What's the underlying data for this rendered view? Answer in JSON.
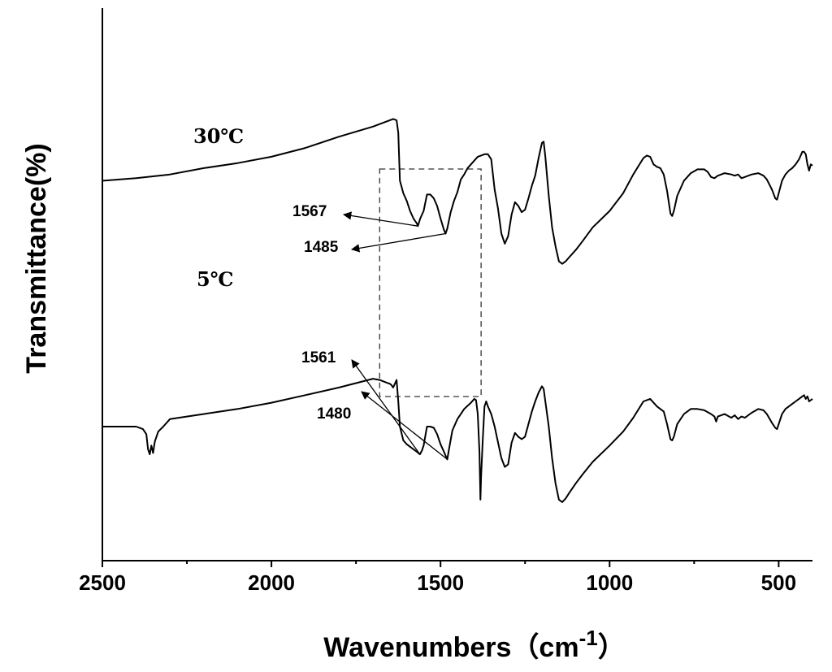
{
  "chart_data": {
    "type": "line",
    "title": "",
    "xlabel": "Wavenumbers（cm",
    "xlabel_sup": "-1",
    "xlabel_close": "）",
    "ylabel": "Transmittance(%)",
    "xlim": [
      2500,
      400
    ],
    "x_reversed": true,
    "x_ticks": [
      2500,
      2000,
      1500,
      1000,
      500
    ],
    "x_tick_labels": [
      "2500",
      "2000",
      "1500",
      "1000",
      "500"
    ],
    "y_ticks_shown": false,
    "grid": false,
    "legend": "none",
    "series": [
      {
        "name": "30℃",
        "points": [
          [
            2500,
            -8
          ],
          [
            2400,
            -6
          ],
          [
            2300,
            -3
          ],
          [
            2200,
            2
          ],
          [
            2100,
            6
          ],
          [
            2000,
            11
          ],
          [
            1900,
            18
          ],
          [
            1800,
            27
          ],
          [
            1700,
            35
          ],
          [
            1660,
            39
          ],
          [
            1640,
            41
          ],
          [
            1630,
            40
          ],
          [
            1625,
            30
          ],
          [
            1620,
            -8
          ],
          [
            1610,
            -18
          ],
          [
            1600,
            -24
          ],
          [
            1590,
            -32
          ],
          [
            1580,
            -38
          ],
          [
            1570,
            -42
          ],
          [
            1567,
            -44
          ],
          [
            1560,
            -38
          ],
          [
            1550,
            -32
          ],
          [
            1540,
            -19
          ],
          [
            1530,
            -19
          ],
          [
            1520,
            -22
          ],
          [
            1510,
            -28
          ],
          [
            1500,
            -38
          ],
          [
            1490,
            -47
          ],
          [
            1485,
            -50
          ],
          [
            1480,
            -46
          ],
          [
            1470,
            -33
          ],
          [
            1460,
            -24
          ],
          [
            1450,
            -17
          ],
          [
            1440,
            -7
          ],
          [
            1430,
            -3
          ],
          [
            1420,
            2
          ],
          [
            1410,
            5
          ],
          [
            1400,
            8
          ],
          [
            1390,
            11
          ],
          [
            1380,
            12
          ],
          [
            1370,
            13
          ],
          [
            1360,
            13
          ],
          [
            1350,
            9
          ],
          [
            1340,
            -15
          ],
          [
            1330,
            -30
          ],
          [
            1320,
            -50
          ],
          [
            1310,
            -58
          ],
          [
            1300,
            -52
          ],
          [
            1290,
            -35
          ],
          [
            1280,
            -25
          ],
          [
            1270,
            -28
          ],
          [
            1260,
            -33
          ],
          [
            1250,
            -31
          ],
          [
            1240,
            -22
          ],
          [
            1230,
            -12
          ],
          [
            1220,
            -4
          ],
          [
            1210,
            10
          ],
          [
            1200,
            22
          ],
          [
            1195,
            23
          ],
          [
            1190,
            11
          ],
          [
            1180,
            -20
          ],
          [
            1170,
            -45
          ],
          [
            1160,
            -60
          ],
          [
            1150,
            -72
          ],
          [
            1140,
            -74
          ],
          [
            1130,
            -72
          ],
          [
            1120,
            -69
          ],
          [
            1100,
            -63
          ],
          [
            1080,
            -56
          ],
          [
            1050,
            -45
          ],
          [
            1000,
            -32
          ],
          [
            960,
            -18
          ],
          [
            930,
            -3
          ],
          [
            900,
            10
          ],
          [
            890,
            12
          ],
          [
            880,
            11
          ],
          [
            870,
            5
          ],
          [
            860,
            3
          ],
          [
            850,
            2
          ],
          [
            840,
            -3
          ],
          [
            830,
            -16
          ],
          [
            820,
            -34
          ],
          [
            815,
            -36
          ],
          [
            810,
            -32
          ],
          [
            800,
            -20
          ],
          [
            780,
            -8
          ],
          [
            760,
            -2
          ],
          [
            740,
            1
          ],
          [
            720,
            1
          ],
          [
            710,
            -1
          ],
          [
            700,
            -5
          ],
          [
            690,
            -6
          ],
          [
            680,
            -4
          ],
          [
            660,
            -2
          ],
          [
            640,
            -3
          ],
          [
            630,
            -4
          ],
          [
            620,
            -3
          ],
          [
            610,
            -6
          ],
          [
            600,
            -5
          ],
          [
            580,
            -3
          ],
          [
            560,
            -2
          ],
          [
            545,
            -4
          ],
          [
            535,
            -7
          ],
          [
            520,
            -15
          ],
          [
            510,
            -22
          ],
          [
            505,
            -23
          ],
          [
            500,
            -18
          ],
          [
            490,
            -8
          ],
          [
            480,
            -3
          ],
          [
            470,
            0
          ],
          [
            460,
            2
          ],
          [
            450,
            5
          ],
          [
            440,
            9
          ],
          [
            430,
            15
          ],
          [
            425,
            15
          ],
          [
            420,
            13
          ],
          [
            415,
            5
          ],
          [
            410,
            0
          ],
          [
            405,
            5
          ],
          [
            400,
            4
          ]
        ]
      },
      {
        "name": "5℃",
        "points": [
          [
            2500,
            -100
          ],
          [
            2400,
            -100
          ],
          [
            2380,
            -102
          ],
          [
            2370,
            -106
          ],
          [
            2365,
            -118
          ],
          [
            2360,
            -122
          ],
          [
            2355,
            -115
          ],
          [
            2350,
            -121
          ],
          [
            2345,
            -112
          ],
          [
            2335,
            -104
          ],
          [
            2320,
            -100
          ],
          [
            2300,
            -94
          ],
          [
            2250,
            -92
          ],
          [
            2200,
            -90
          ],
          [
            2100,
            -86
          ],
          [
            2000,
            -81
          ],
          [
            1900,
            -75
          ],
          [
            1800,
            -69
          ],
          [
            1700,
            -62
          ],
          [
            1680,
            -63
          ],
          [
            1660,
            -65
          ],
          [
            1650,
            -66
          ],
          [
            1645,
            -67
          ],
          [
            1640,
            -69
          ],
          [
            1630,
            -63
          ],
          [
            1625,
            -80
          ],
          [
            1620,
            -100
          ],
          [
            1610,
            -111
          ],
          [
            1600,
            -114
          ],
          [
            1590,
            -116
          ],
          [
            1580,
            -118
          ],
          [
            1570,
            -120
          ],
          [
            1561,
            -122
          ],
          [
            1555,
            -119
          ],
          [
            1550,
            -115
          ],
          [
            1540,
            -100
          ],
          [
            1530,
            -100
          ],
          [
            1520,
            -101
          ],
          [
            1510,
            -106
          ],
          [
            1500,
            -114
          ],
          [
            1490,
            -120
          ],
          [
            1485,
            -123
          ],
          [
            1480,
            -126
          ],
          [
            1475,
            -118
          ],
          [
            1465,
            -103
          ],
          [
            1450,
            -94
          ],
          [
            1430,
            -86
          ],
          [
            1410,
            -81
          ],
          [
            1400,
            -78
          ],
          [
            1395,
            -79
          ],
          [
            1390,
            -90
          ],
          [
            1385,
            -120
          ],
          [
            1382,
            -158
          ],
          [
            1380,
            -140
          ],
          [
            1375,
            -110
          ],
          [
            1370,
            -84
          ],
          [
            1365,
            -80
          ],
          [
            1360,
            -84
          ],
          [
            1350,
            -90
          ],
          [
            1340,
            -100
          ],
          [
            1320,
            -125
          ],
          [
            1310,
            -132
          ],
          [
            1300,
            -130
          ],
          [
            1290,
            -113
          ],
          [
            1280,
            -105
          ],
          [
            1270,
            -108
          ],
          [
            1260,
            -110
          ],
          [
            1250,
            -108
          ],
          [
            1240,
            -98
          ],
          [
            1230,
            -88
          ],
          [
            1220,
            -80
          ],
          [
            1210,
            -73
          ],
          [
            1200,
            -68
          ],
          [
            1195,
            -70
          ],
          [
            1190,
            -80
          ],
          [
            1180,
            -100
          ],
          [
            1170,
            -125
          ],
          [
            1160,
            -145
          ],
          [
            1150,
            -158
          ],
          [
            1140,
            -160
          ],
          [
            1130,
            -157
          ],
          [
            1120,
            -153
          ],
          [
            1100,
            -145
          ],
          [
            1080,
            -138
          ],
          [
            1050,
            -128
          ],
          [
            1000,
            -115
          ],
          [
            960,
            -104
          ],
          [
            930,
            -93
          ],
          [
            900,
            -80
          ],
          [
            880,
            -78
          ],
          [
            870,
            -81
          ],
          [
            860,
            -84
          ],
          [
            850,
            -86
          ],
          [
            840,
            -88
          ],
          [
            830,
            -98
          ],
          [
            820,
            -110
          ],
          [
            815,
            -111
          ],
          [
            810,
            -108
          ],
          [
            800,
            -98
          ],
          [
            780,
            -90
          ],
          [
            760,
            -86
          ],
          [
            740,
            -86
          ],
          [
            720,
            -87
          ],
          [
            700,
            -90
          ],
          [
            690,
            -92
          ],
          [
            685,
            -96
          ],
          [
            680,
            -92
          ],
          [
            660,
            -90
          ],
          [
            640,
            -93
          ],
          [
            630,
            -91
          ],
          [
            620,
            -94
          ],
          [
            610,
            -92
          ],
          [
            600,
            -93
          ],
          [
            580,
            -89
          ],
          [
            560,
            -86
          ],
          [
            545,
            -87
          ],
          [
            535,
            -90
          ],
          [
            520,
            -97
          ],
          [
            510,
            -101
          ],
          [
            505,
            -102
          ],
          [
            500,
            -98
          ],
          [
            490,
            -90
          ],
          [
            480,
            -86
          ],
          [
            470,
            -84
          ],
          [
            460,
            -82
          ],
          [
            450,
            -80
          ],
          [
            440,
            -78
          ],
          [
            430,
            -76
          ],
          [
            425,
            -75
          ],
          [
            420,
            -78
          ],
          [
            415,
            -76
          ],
          [
            410,
            -80
          ],
          [
            400,
            -78
          ]
        ]
      }
    ],
    "annotations": [
      {
        "label": "1567",
        "target": "30℃",
        "x": 1567
      },
      {
        "label": "1485",
        "target": "30℃",
        "x": 1485
      },
      {
        "label": "1561",
        "target": "5℃",
        "x": 1561
      },
      {
        "label": "1480",
        "target": "5℃",
        "x": 1480
      }
    ],
    "highlight_box": {
      "x_range": [
        1680,
        1380
      ],
      "style": "dashed"
    }
  }
}
